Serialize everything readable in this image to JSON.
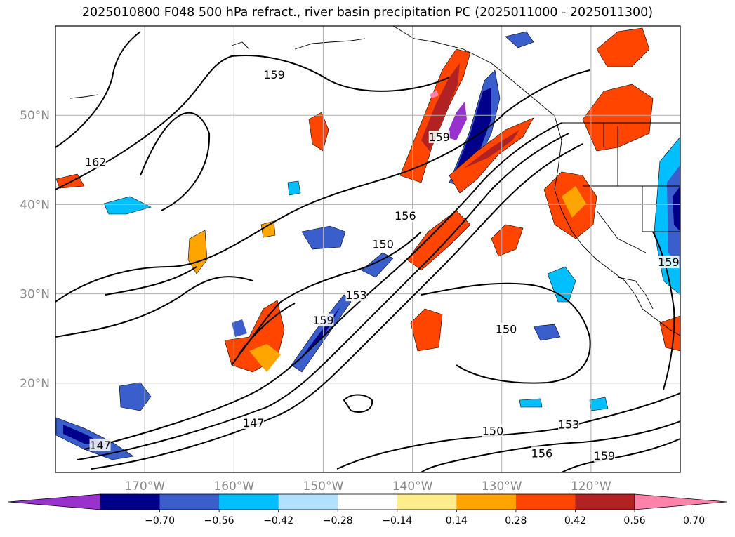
{
  "title": "2025010800 F048 500 hPa refract., river basin precipitation PC (2025011000 - 2025011300)",
  "chart_data": {
    "type": "map-contour",
    "title": "2025010800 F048 500 hPa refract., river basin precipitation PC (2025011000 - 2025011300)",
    "lon_range": [
      -180,
      -110
    ],
    "lat_range": [
      10,
      60
    ],
    "lon_ticks": [
      {
        "value": -170,
        "label": "170°W"
      },
      {
        "value": -160,
        "label": "160°W"
      },
      {
        "value": -150,
        "label": "150°W"
      },
      {
        "value": -140,
        "label": "140°W"
      },
      {
        "value": -130,
        "label": "130°W"
      },
      {
        "value": -120,
        "label": "120°W"
      }
    ],
    "lat_ticks": [
      {
        "value": 20,
        "label": "20°N"
      },
      {
        "value": 30,
        "label": "30°N"
      },
      {
        "value": 40,
        "label": "40°N"
      },
      {
        "value": 50,
        "label": "50°N"
      }
    ],
    "grid": true,
    "colorbar": {
      "orientation": "horizontal",
      "extend": "both",
      "levels": [
        -0.7,
        -0.56,
        -0.42,
        -0.28,
        -0.14,
        0.14,
        0.28,
        0.42,
        0.56,
        0.7
      ],
      "tick_labels": [
        "−0.70",
        "−0.56",
        "−0.42",
        "−0.28",
        "−0.14",
        "0.14",
        "0.28",
        "0.42",
        "0.56",
        "0.70"
      ],
      "colors": [
        "#9932cc",
        "#00008b",
        "#3a5fcd",
        "#00bfff",
        "#b0e2ff",
        "#ffffff",
        "#ffec8b",
        "#ffa500",
        "#ff4500",
        "#b22222",
        "#ff82ab"
      ]
    },
    "contour_labels": [
      {
        "text": "159",
        "lon": -155.5,
        "lat": 54.5
      },
      {
        "text": "162",
        "lon": -175.5,
        "lat": 44.7
      },
      {
        "text": "159",
        "lon": -137.0,
        "lat": 47.5
      },
      {
        "text": "156",
        "lon": -140.8,
        "lat": 38.7
      },
      {
        "text": "150",
        "lon": -143.3,
        "lat": 35.5
      },
      {
        "text": "153",
        "lon": -146.3,
        "lat": 29.8
      },
      {
        "text": "159",
        "lon": -150.0,
        "lat": 27.0
      },
      {
        "text": "150",
        "lon": -129.5,
        "lat": 26.0
      },
      {
        "text": "159",
        "lon": -111.3,
        "lat": 33.5
      },
      {
        "text": "147",
        "lon": -175.0,
        "lat": 13.0
      },
      {
        "text": "147",
        "lon": -157.8,
        "lat": 15.5
      },
      {
        "text": "150",
        "lon": -131.0,
        "lat": 14.6
      },
      {
        "text": "153",
        "lon": -122.5,
        "lat": 15.3
      },
      {
        "text": "156",
        "lon": -125.5,
        "lat": 12.1
      },
      {
        "text": "159",
        "lon": -118.5,
        "lat": 11.8
      }
    ]
  }
}
